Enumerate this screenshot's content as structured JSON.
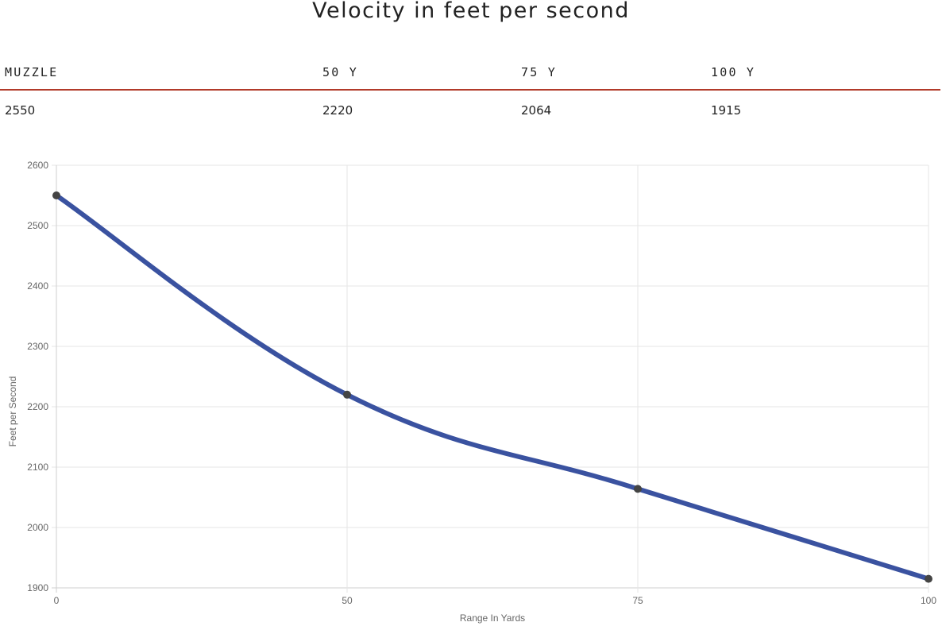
{
  "page": {
    "title": "Velocity in feet per second"
  },
  "velocity_table": {
    "headers": [
      "MUZZLE",
      "50 Y",
      "75 Y",
      "100 Y"
    ],
    "values": [
      "2550",
      "2220",
      "2064",
      "1915"
    ],
    "rule_color": "#b23a2a"
  },
  "chart_data": {
    "type": "line",
    "title": "",
    "xlabel": "Range In Yards",
    "ylabel": "Feet per Second",
    "categories": [
      "0",
      "50",
      "75",
      "100"
    ],
    "series": [
      {
        "values": [
          2550,
          2220,
          2064,
          1915
        ],
        "color": "#3a52a0"
      }
    ],
    "ylim": [
      1900,
      2600
    ],
    "yticks": [
      1900,
      2000,
      2100,
      2200,
      2300,
      2400,
      2500,
      2600
    ],
    "grid": true,
    "legend": "none",
    "point_color": "#444444"
  }
}
